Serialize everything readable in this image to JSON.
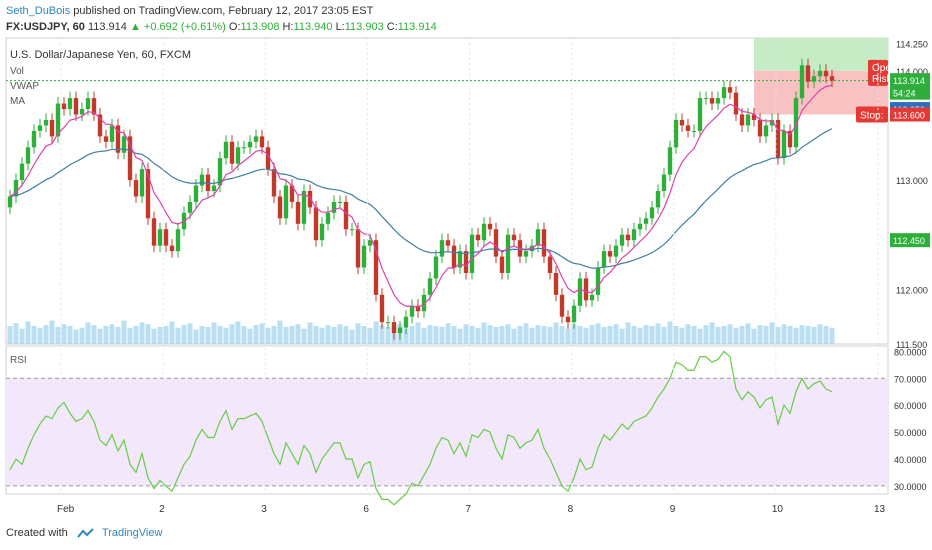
{
  "header": {
    "author": "Seth_DuBois",
    "published_text": "published on TradingView.com, February 12, 2017 23:05 EST",
    "symbol": "FX:USDJPY, 60",
    "last": "113.914",
    "change": "▲ +0.692 (+0.61%)",
    "o_label": "O:",
    "o_value": "113.908",
    "h_label": "H:",
    "h_value": "113.940",
    "l_label": "L:",
    "l_value": "113.903",
    "c_label": "C:",
    "c_value": "113.914"
  },
  "legend": {
    "title": "U.S. Dollar/Japanese Yen, 60, FXCM",
    "items": [
      "Vol",
      "VWAP",
      "MA"
    ]
  },
  "footer": {
    "created_with": "Created with",
    "brand": "TradingView"
  },
  "colors": {
    "up": "#2eae3a",
    "down": "#c0392b",
    "vwap": "#e040b0",
    "ma": "#3f7fa0",
    "rsi": "#66cc44",
    "rsi_band": "#f3e8fb",
    "volume": "#a9d7f0",
    "target_zone": "#c6ecc6",
    "stop_zone": "#f8c2c2"
  },
  "chart_data": [
    {
      "type": "candlestick",
      "title": "U.S. Dollar/Japanese Yen, 60, FXCM",
      "ylim": [
        111.5,
        114.3
      ],
      "y_ticks": [
        "114.250",
        "114.000",
        "113.000",
        "112.000",
        "111.500"
      ],
      "price_labels": [
        {
          "text": "113.914",
          "value": 113.914,
          "color": "#2eae3a"
        },
        {
          "text": "54:24",
          "value": 113.8,
          "color": "#2eae3a"
        },
        {
          "text": "113.650",
          "value": 113.65,
          "color": "#2e6fc1"
        },
        {
          "text": "113.600",
          "value": 113.6,
          "color": "#e53935"
        },
        {
          "text": "112.450",
          "value": 112.45,
          "color": "#2eae3a"
        }
      ],
      "x_ticks": [
        "Feb",
        "2",
        "3",
        "6",
        "7",
        "8",
        "9",
        "10",
        "13"
      ],
      "annotations": {
        "risk_label": "Open\nRisk",
        "stop_label": "Stop:",
        "target_zone": [
          114.0,
          114.3
        ],
        "stop_zone": [
          113.6,
          114.0
        ],
        "entry": 113.91
      },
      "close": [
        112.85,
        113.0,
        113.15,
        113.3,
        113.45,
        113.5,
        113.55,
        113.4,
        113.7,
        113.65,
        113.75,
        113.6,
        113.65,
        113.75,
        113.6,
        113.4,
        113.35,
        113.5,
        113.25,
        113.4,
        113.0,
        112.85,
        113.1,
        112.65,
        112.4,
        112.55,
        112.4,
        112.35,
        112.55,
        112.7,
        112.8,
        112.95,
        113.05,
        112.9,
        112.95,
        113.2,
        113.35,
        113.15,
        113.3,
        113.3,
        113.35,
        113.4,
        113.3,
        113.1,
        112.85,
        112.65,
        112.95,
        112.8,
        112.6,
        112.9,
        112.75,
        112.45,
        112.6,
        112.7,
        112.8,
        112.8,
        112.55,
        112.55,
        112.2,
        112.4,
        112.45,
        111.95,
        111.7,
        111.7,
        111.6,
        111.65,
        111.75,
        111.85,
        111.8,
        111.95,
        112.1,
        112.3,
        112.45,
        112.4,
        112.2,
        112.35,
        112.15,
        112.5,
        112.45,
        112.6,
        112.55,
        112.3,
        112.15,
        112.5,
        112.45,
        112.3,
        112.35,
        112.4,
        112.55,
        112.3,
        112.15,
        111.95,
        111.75,
        111.7,
        111.85,
        112.1,
        111.9,
        111.95,
        112.2,
        112.35,
        112.3,
        112.4,
        112.5,
        112.45,
        112.55,
        112.6,
        112.65,
        112.75,
        112.9,
        113.05,
        113.3,
        113.55,
        113.5,
        113.45,
        113.45,
        113.75,
        113.75,
        113.7,
        113.75,
        113.85,
        113.8,
        113.6,
        113.5,
        113.6,
        113.55,
        113.4,
        113.5,
        113.55,
        113.2,
        113.45,
        113.3,
        113.75,
        114.05,
        113.9,
        113.95,
        114.0,
        113.95,
        113.91
      ],
      "volume": [
        1.0,
        1.15,
        0.85,
        1.25,
        1.0,
        0.9,
        1.05,
        1.3,
        0.95,
        1.1,
        1.0,
        0.8,
        0.9,
        1.2,
        1.05,
        0.85,
        1.0,
        1.1,
        0.95,
        1.3,
        0.9,
        1.0,
        1.2,
        1.1,
        0.85,
        0.95,
        1.0,
        1.25,
        0.9,
        1.05,
        1.15,
        0.8,
        1.0,
        0.95,
        1.2,
        1.0,
        0.9,
        1.1,
        1.25,
        1.0,
        0.85,
        1.05,
        1.15,
        0.9,
        1.0,
        1.3,
        0.95,
        1.0,
        1.1,
        0.85,
        1.2,
        1.0,
        0.9,
        1.05,
        0.95,
        1.1,
        1.0,
        0.8,
        1.15,
        1.0,
        0.9,
        1.25,
        1.05,
        0.95,
        1.0,
        1.1,
        0.85,
        1.0,
        1.2,
        0.9,
        1.05,
        1.0,
        0.95,
        1.15,
        1.0,
        0.85,
        1.1,
        1.0,
        0.9,
        1.2,
        1.05,
        0.95,
        1.0,
        1.1,
        0.85,
        1.0,
        1.15,
        0.9,
        1.05,
        1.0,
        0.95,
        1.2,
        1.0,
        0.85,
        1.1,
        1.0,
        0.9,
        1.05,
        1.15,
        0.95,
        1.0,
        1.1,
        0.85,
        1.2,
        1.0,
        0.9,
        1.05,
        1.0,
        1.15,
        0.95,
        1.25,
        1.0,
        0.9,
        1.1,
        1.0,
        0.85,
        1.05,
        1.2,
        0.95,
        1.0,
        1.1,
        0.9,
        1.0,
        1.15,
        0.85,
        1.05,
        1.0,
        1.2,
        0.95,
        1.1,
        1.0,
        0.9,
        1.05,
        1.0,
        0.95,
        1.1,
        1.0,
        0.9
      ]
    },
    {
      "type": "line",
      "title": "RSI",
      "ylim": [
        27,
        82
      ],
      "y_ticks": [
        "80.0000",
        "70.0000",
        "60.0000",
        "50.0000",
        "40.0000",
        "30.0000"
      ],
      "bands": [
        30,
        70
      ],
      "values": [
        36,
        40,
        38,
        44,
        49,
        53,
        56,
        55,
        59,
        61,
        57,
        54,
        55,
        58,
        54,
        47,
        45,
        49,
        43,
        47,
        38,
        35,
        42,
        33,
        29,
        32,
        30,
        28,
        33,
        38,
        41,
        47,
        51,
        48,
        48,
        54,
        58,
        51,
        55,
        55,
        56,
        57,
        54,
        48,
        42,
        38,
        46,
        42,
        38,
        45,
        42,
        35,
        40,
        43,
        46,
        46,
        40,
        40,
        33,
        38,
        39,
        29,
        25,
        25,
        23,
        25,
        27,
        31,
        30,
        34,
        38,
        44,
        48,
        47,
        42,
        46,
        41,
        49,
        48,
        51,
        50,
        44,
        40,
        49,
        48,
        44,
        46,
        47,
        51,
        44,
        40,
        35,
        30,
        28,
        33,
        40,
        36,
        37,
        44,
        49,
        47,
        50,
        53,
        51,
        54,
        55,
        56,
        59,
        63,
        66,
        70,
        76,
        75,
        73,
        73,
        78,
        78,
        76,
        77,
        80,
        78,
        66,
        62,
        65,
        63,
        59,
        62,
        63,
        53,
        60,
        57,
        65,
        70,
        66,
        68,
        69,
        66,
        65
      ]
    }
  ]
}
